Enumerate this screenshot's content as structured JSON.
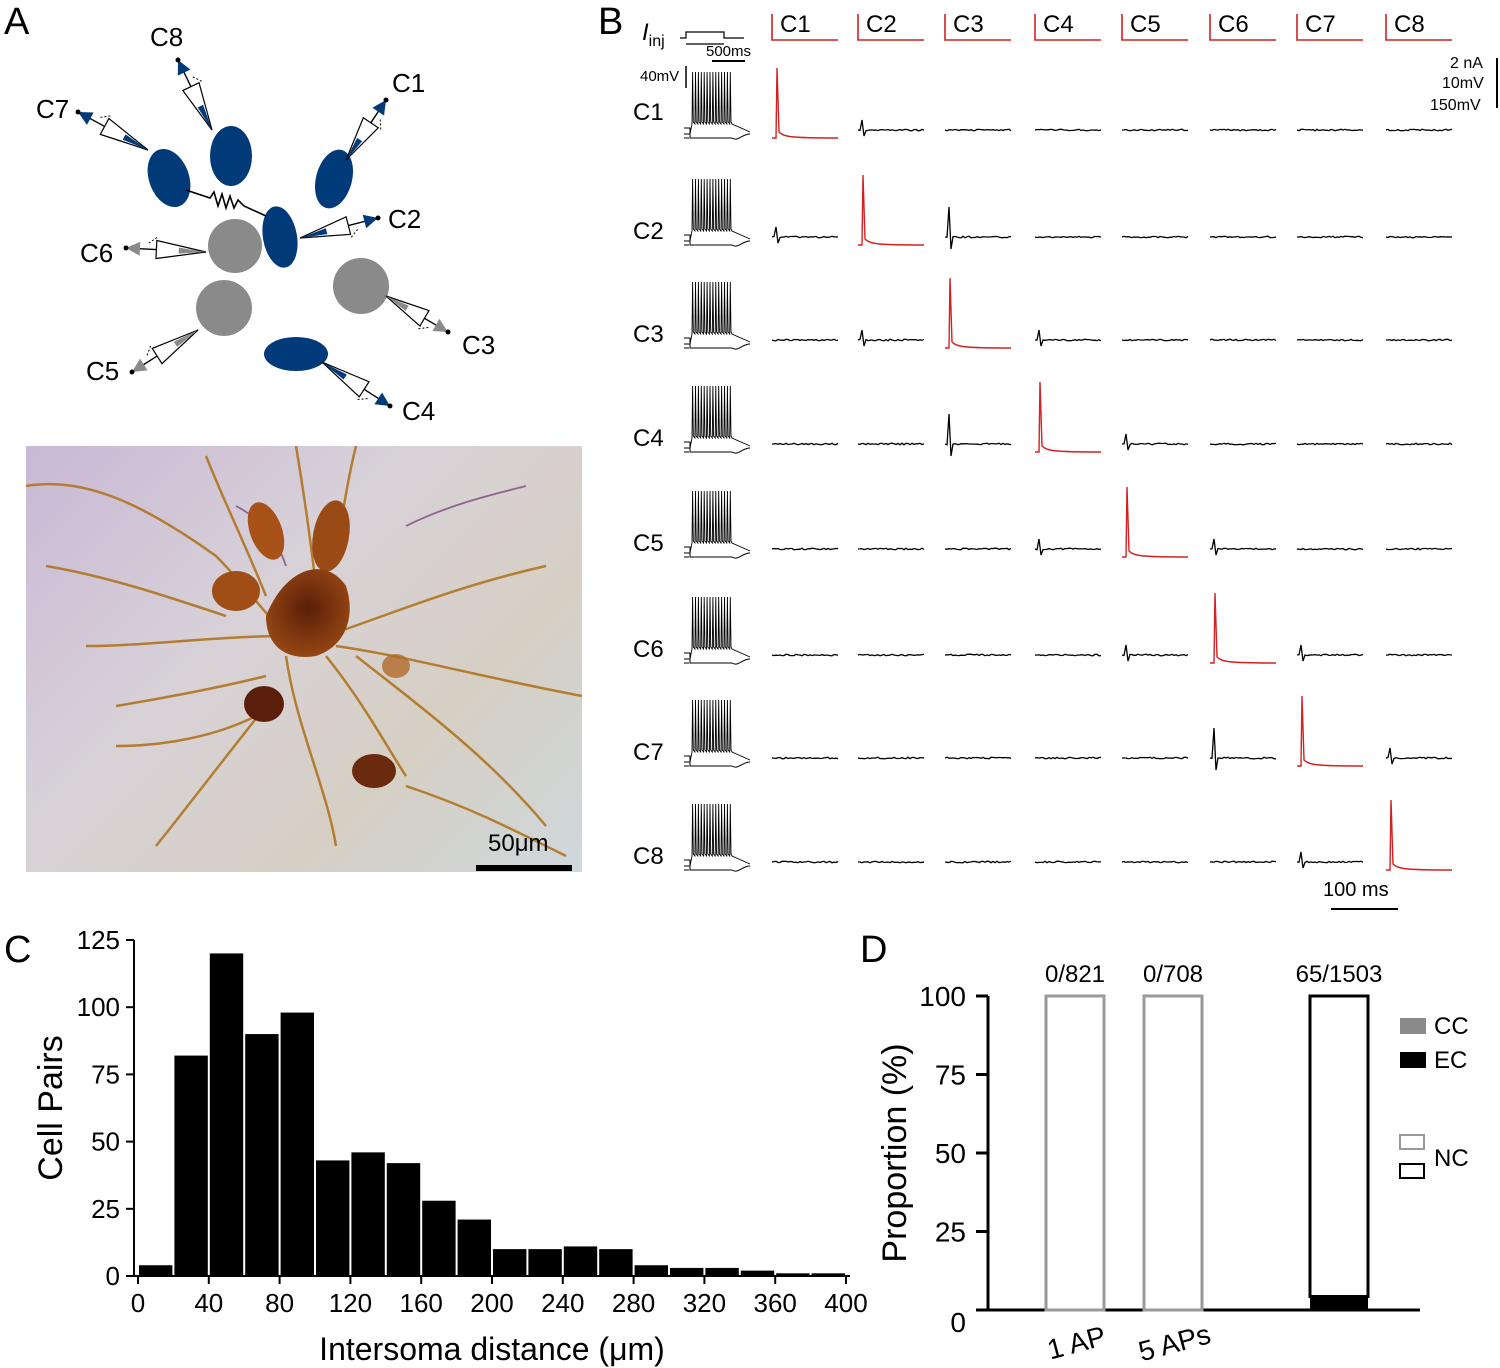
{
  "panel_labels": {
    "a": "A",
    "b": "B",
    "c": "C",
    "d": "D"
  },
  "panel_a": {
    "cells": [
      "C1",
      "C2",
      "C3",
      "C4",
      "C5",
      "C6",
      "C7",
      "C8"
    ],
    "colors": {
      "electrical_group": "#003a78",
      "other": "#8a8a8a"
    },
    "scale_label": "50μm"
  },
  "panel_b": {
    "iinj_label": "I",
    "iinj_sub": "inj",
    "iinj_scale": "500ms",
    "vm_scale": "40mV",
    "column_labels": [
      "C1",
      "C2",
      "C3",
      "C4",
      "C5",
      "C6",
      "C7",
      "C8"
    ],
    "row_labels": [
      "C1",
      "C2",
      "C3",
      "C4",
      "C5",
      "C6",
      "C7",
      "C8"
    ],
    "scale_right": [
      "2 nA",
      "10mV",
      "150mV"
    ],
    "time_scale": "100 ms",
    "stim_color": "#d42020"
  },
  "chart_data": [
    {
      "type": "bar",
      "panel": "C",
      "xlabel": "Intersoma distance (μm)",
      "ylabel": "Cell Pairs",
      "x_ticks": [
        0,
        40,
        80,
        120,
        160,
        200,
        240,
        280,
        320,
        360,
        400
      ],
      "y_ticks": [
        0,
        25,
        50,
        75,
        100,
        125
      ],
      "xlim": [
        0,
        400
      ],
      "ylim": [
        0,
        125
      ],
      "bin_width": 20,
      "bin_starts": [
        0,
        20,
        40,
        60,
        80,
        100,
        120,
        140,
        160,
        180,
        200,
        220,
        240,
        260,
        280,
        300,
        320,
        340,
        360,
        380
      ],
      "values": [
        4,
        82,
        120,
        90,
        98,
        43,
        46,
        42,
        28,
        21,
        10,
        10,
        11,
        10,
        4,
        3,
        3,
        2,
        1,
        1
      ],
      "color": "#000000"
    },
    {
      "type": "bar",
      "panel": "D",
      "ylabel": "Proportion (%)",
      "y_ticks": [
        0,
        25,
        50,
        75,
        100
      ],
      "ylim": [
        0,
        100
      ],
      "categories": [
        "1 AP",
        "5 APs",
        ""
      ],
      "annotations": [
        "0/821",
        "0/708",
        "65/1503"
      ],
      "series": [
        {
          "name": "CC",
          "color": "#8a8a8a",
          "values": [
            0,
            0,
            0
          ]
        },
        {
          "name": "EC",
          "color": "#000000",
          "values": [
            0,
            0,
            4.3
          ]
        },
        {
          "name": "NC",
          "values": [
            100,
            100,
            95.7
          ]
        }
      ],
      "nc_outline_colors": [
        "#999999",
        "#999999",
        "#000000"
      ],
      "legend": [
        "CC",
        "EC",
        "NC"
      ],
      "legend_position": "right"
    }
  ]
}
